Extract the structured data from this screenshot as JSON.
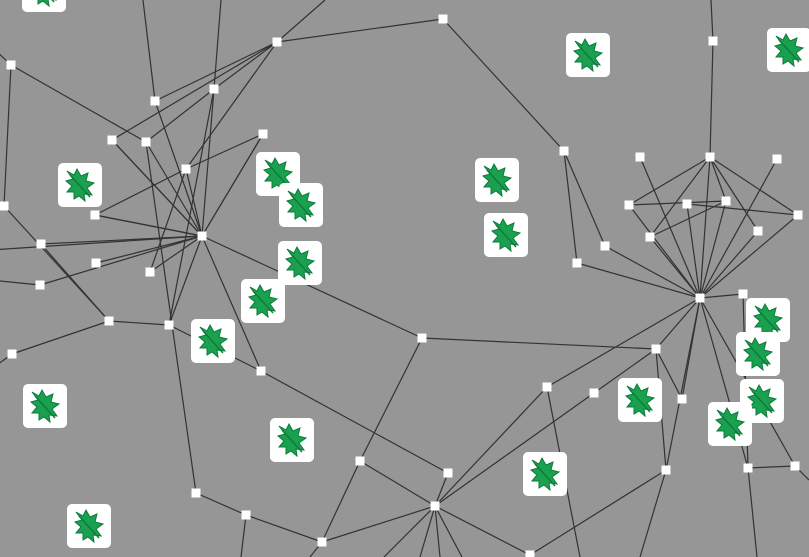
{
  "graph": {
    "background_color": "#969696",
    "edge_color": "#333333",
    "node_color": "#ffffff",
    "icon_tile_color": "#ffffff",
    "icon_color": "#1aa150",
    "icon_name": "holly-leaf-icon"
  }
}
